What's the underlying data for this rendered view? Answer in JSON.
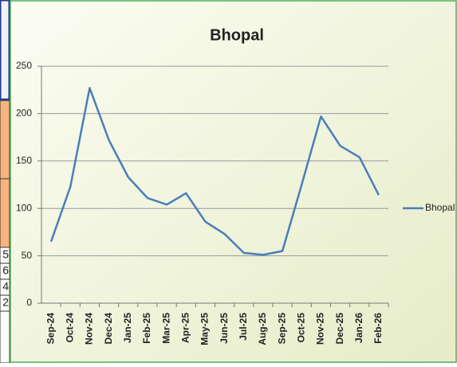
{
  "chart_data": {
    "type": "line",
    "title": "Bhopal",
    "categories": [
      "Sep-24",
      "Oct-24",
      "Nov-24",
      "Dec-24",
      "Jan-25",
      "Feb-25",
      "Mar-25",
      "Apr-25",
      "May-25",
      "Jun-25",
      "Jul-25",
      "Aug-25",
      "Sep-25",
      "Oct-25",
      "Nov-25",
      "Dec-25",
      "Jan-26",
      "Feb-26"
    ],
    "series": [
      {
        "name": "Bhopal",
        "color": "#4a7ebb",
        "values": [
          65,
          123,
          227,
          172,
          133,
          111,
          104,
          116,
          86,
          73,
          53,
          51,
          55,
          125,
          197,
          166,
          154,
          114
        ]
      }
    ],
    "ylim": [
      0,
      250
    ],
    "yticks": [
      0,
      50,
      100,
      150,
      200,
      250
    ],
    "grid": true,
    "legend": "right"
  },
  "sheet_cells": [
    "5",
    "6",
    "4",
    "2"
  ]
}
